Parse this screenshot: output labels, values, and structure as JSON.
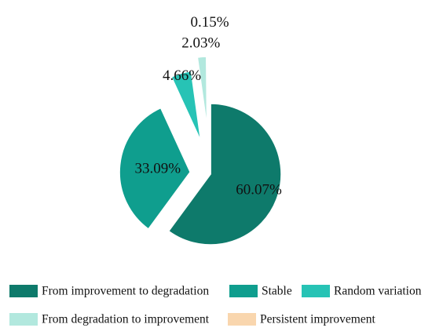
{
  "chart_data": {
    "type": "pie",
    "exploded": true,
    "series": [
      {
        "name": "From improvement to degradation",
        "value": 60.07,
        "label": "60.07%",
        "color": "#0e7a6b"
      },
      {
        "name": "Stable",
        "value": 33.09,
        "label": "33.09%",
        "color": "#0f9e8e"
      },
      {
        "name": "Random variation",
        "value": 4.66,
        "label": "4.66%",
        "color": "#27c3b5"
      },
      {
        "name": "From degradation to improvement",
        "value": 2.03,
        "label": "2.03%",
        "color": "#b2e8de"
      },
      {
        "name": "Persistent improvement",
        "value": 0.15,
        "label": "0.15%",
        "color": "#f9d6ae"
      }
    ],
    "legend_position": "bottom"
  }
}
